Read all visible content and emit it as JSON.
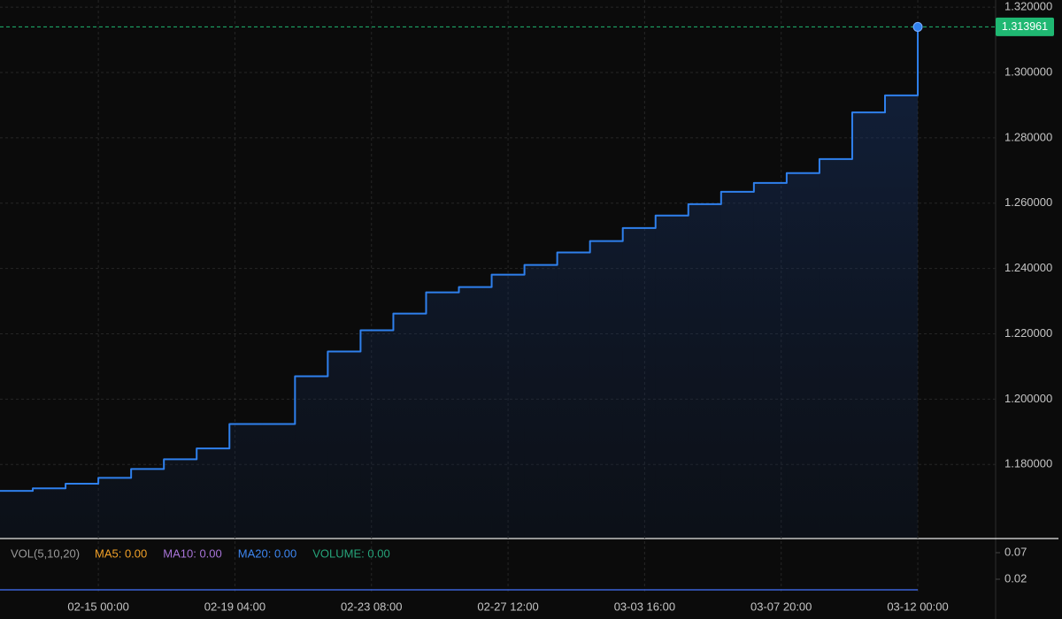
{
  "chart_data": [
    {
      "type": "step-line",
      "x": [
        "02-12 00:00",
        "02-13 00:00",
        "02-14 00:00",
        "02-15 00:00",
        "02-16 00:00",
        "02-17 00:00",
        "02-18 00:00",
        "02-19 00:00",
        "02-20 00:00",
        "02-21 00:00",
        "02-22 00:00",
        "02-23 00:00",
        "02-24 00:00",
        "02-25 00:00",
        "02-26 00:00",
        "02-27 00:00",
        "02-28 00:00",
        "03-01 00:00",
        "03-02 00:00",
        "03-03 00:00",
        "03-04 00:00",
        "03-05 00:00",
        "03-06 00:00",
        "03-07 00:00",
        "03-08 00:00",
        "03-09 00:00",
        "03-10 00:00",
        "03-11 00:00",
        "03-12 00:00"
      ],
      "values": [
        1.1719,
        1.1727,
        1.1741,
        1.1759,
        1.1786,
        1.1816,
        1.1849,
        1.1924,
        1.1924,
        1.207,
        1.2146,
        1.2211,
        1.2262,
        1.2327,
        1.2343,
        1.2381,
        1.2411,
        1.2449,
        1.2484,
        1.2524,
        1.2562,
        1.2597,
        1.2635,
        1.2662,
        1.2692,
        1.2735,
        1.2878,
        1.293,
        1.313961
      ],
      "color": "#2f80ed",
      "last_price_color": "#1fb872",
      "xlim": [
        "02-12 00:00",
        "03-14 09:00"
      ],
      "xticks": [
        "02-15 00:00",
        "02-19 04:00",
        "02-23 08:00",
        "02-27 12:00",
        "03-03 16:00",
        "03-07 20:00",
        "03-12 00:00"
      ],
      "ylim": [
        1.1576,
        1.3222
      ],
      "yticks": [
        {
          "value": 1.18,
          "label": "1.180000"
        },
        {
          "value": 1.2,
          "label": "1.200000"
        },
        {
          "value": 1.22,
          "label": "1.220000"
        },
        {
          "value": 1.24,
          "label": "1.240000"
        },
        {
          "value": 1.26,
          "label": "1.260000"
        },
        {
          "value": 1.28,
          "label": "1.280000"
        },
        {
          "value": 1.3,
          "label": "1.300000"
        },
        {
          "value": 1.32,
          "label": "1.320000"
        }
      ],
      "grid": true
    },
    {
      "type": "volume",
      "title": "VOL(5,10,20)",
      "legend": [
        {
          "name": "MA5: 0.00",
          "color": "#f0a028"
        },
        {
          "name": "MA10: 0.00",
          "color": "#a874d8"
        },
        {
          "name": "MA20: 0.00",
          "color": "#3d86f0"
        },
        {
          "name": "VOLUME: 0.00",
          "color": "#26a47a"
        }
      ],
      "x": [
        "02-12 00:00",
        "02-13 00:00",
        "02-14 00:00",
        "02-15 00:00",
        "02-16 00:00",
        "02-17 00:00",
        "02-18 00:00",
        "02-19 00:00",
        "02-20 00:00",
        "02-21 00:00",
        "02-22 00:00",
        "02-23 00:00",
        "02-24 00:00",
        "02-25 00:00",
        "02-26 00:00",
        "02-27 00:00",
        "02-28 00:00",
        "03-01 00:00",
        "03-02 00:00",
        "03-03 00:00",
        "03-04 00:00",
        "03-05 00:00",
        "03-06 00:00",
        "03-07 00:00",
        "03-08 00:00",
        "03-09 00:00",
        "03-10 00:00",
        "03-11 00:00",
        "03-12 00:00"
      ],
      "values": [
        0,
        0,
        0,
        0,
        0,
        0,
        0,
        0,
        0,
        0,
        0,
        0,
        0,
        0,
        0,
        0,
        0,
        0,
        0,
        0,
        0,
        0,
        0,
        0,
        0,
        0,
        0,
        0,
        0
      ],
      "color": "#3a63d8",
      "ylim": [
        -0.0083,
        0.0933
      ],
      "yticks": [
        0.07,
        0.02
      ]
    }
  ]
}
